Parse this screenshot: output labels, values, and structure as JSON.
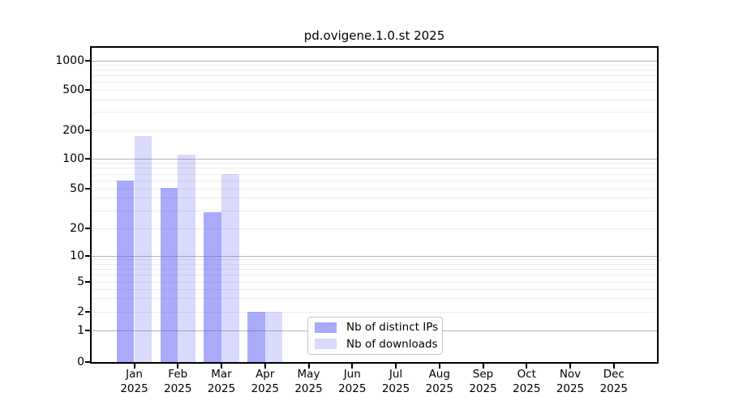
{
  "chart_data": {
    "type": "bar",
    "title": "pd.ovigene.1.0.st 2025",
    "categories": [
      "Jan",
      "Feb",
      "Mar",
      "Apr",
      "May",
      "Jun",
      "Jul",
      "Aug",
      "Sep",
      "Oct",
      "Nov",
      "Dec"
    ],
    "category_year": "2025",
    "series": [
      {
        "name": "Nb of distinct IPs",
        "color": "#a9a9f6",
        "fill": "rgba(85,85,245,0.5)",
        "values": [
          60,
          51,
          29,
          2,
          0,
          0,
          0,
          0,
          0,
          0,
          0,
          0
        ]
      },
      {
        "name": "Nb of downloads",
        "color": "#dadafb",
        "fill": "rgba(85,85,245,0.22)",
        "values": [
          175,
          110,
          70,
          2,
          0,
          0,
          0,
          0,
          0,
          0,
          0,
          0
        ]
      }
    ],
    "xlabel": "",
    "ylabel": "",
    "y_axis": {
      "scale": "log-with-zero",
      "ticks": [
        0,
        1,
        2,
        5,
        10,
        20,
        50,
        100,
        200,
        500,
        1000
      ],
      "range": [
        0,
        1400
      ]
    },
    "grid": {
      "major_values": [
        1,
        10,
        100,
        1000
      ],
      "minor_values": [
        2,
        3,
        4,
        5,
        6,
        7,
        8,
        9,
        20,
        30,
        40,
        50,
        60,
        70,
        80,
        90,
        200,
        300,
        400,
        500,
        600,
        700,
        800,
        900
      ],
      "orientation": "horizontal"
    },
    "legend": {
      "entries": [
        "Nb of distinct IPs",
        "Nb of downloads"
      ],
      "location": "bottom-center"
    }
  },
  "colors": {
    "bar_distinct_ips": "#a9a9f6",
    "bar_downloads": "#dadafb",
    "grid_major": "#b3b3b3",
    "grid_minor": "#ececec",
    "axis": "#000000",
    "legend_border": "#c8c8c8",
    "background": "#ffffff"
  }
}
